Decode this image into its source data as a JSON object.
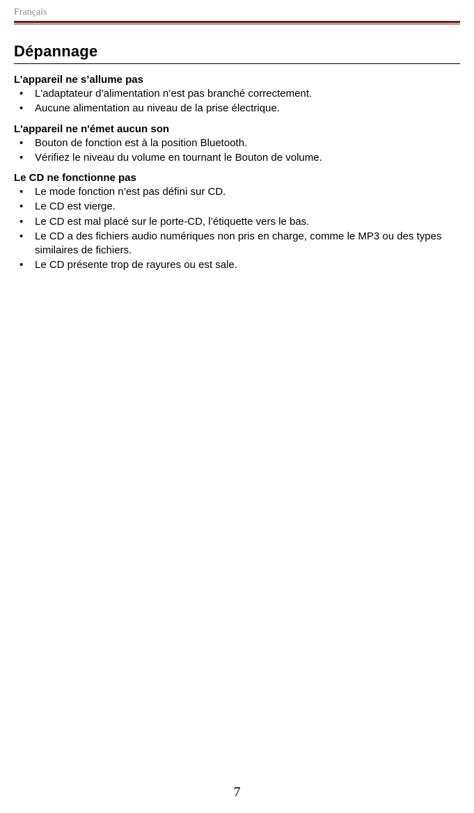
{
  "header": {
    "language_label": "Français",
    "rule_color_dark": "#6b1f1f",
    "label_color": "#8a8a8a"
  },
  "title": "Dépannage",
  "sections": [
    {
      "heading": "L’appareil ne s’allume pas",
      "items": [
        "L'adaptateur d’alimentation n’est pas branché correctement.",
        "Aucune alimentation au niveau de la prise électrique."
      ]
    },
    {
      "heading": "L'appareil ne n'émet aucun son",
      "items": [
        "Bouton de fonction est à la position Bluetooth.",
        "Vérifiez le niveau du volume en tournant le Bouton de volume."
      ]
    },
    {
      "heading": "Le CD ne fonctionne pas",
      "items": [
        "Le mode fonction n’est pas défini sur CD.",
        "Le CD est vierge.",
        "Le CD est mal placé sur le porte-CD, l’étiquette vers le bas.",
        "Le CD a des fichiers audio numériques non pris en charge, comme le MP3 ou des types similaires de fichiers.",
        "Le CD présente trop de rayures ou est sale."
      ]
    }
  ],
  "page_number": "7",
  "colors": {
    "background": "#ffffff",
    "text": "#000000"
  }
}
